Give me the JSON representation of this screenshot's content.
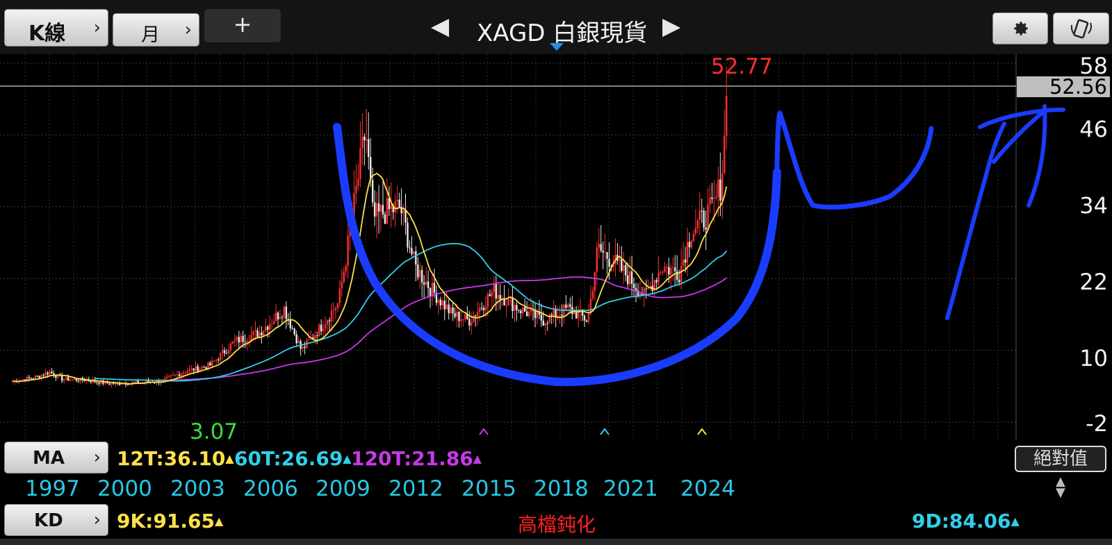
{
  "toolbar": {
    "chart_type_label": "K線",
    "period_label": "月",
    "add_label": "+",
    "title": "XAGD 白銀現貨",
    "prev_symbol": "◀",
    "next_symbol": "▶",
    "settings_icon": "gear-icon",
    "rotate_icon": "rotate-screen-icon"
  },
  "colors": {
    "ma12": "#ffe14a",
    "ma60": "#2fd0e8",
    "ma120": "#c838e8",
    "up_candle": "#ff3030",
    "down_candle": "#e8e8e8",
    "annotation": "#1a3cff",
    "high": "#ff2e2e",
    "low": "#3bdc3b"
  },
  "chart": {
    "y_axis_labels": [
      "58",
      "46",
      "34",
      "22",
      "10",
      "-2"
    ],
    "current_price": "52.56",
    "high_label": "52.77",
    "low_label": "3.07"
  },
  "chart_data": {
    "type": "candlestick",
    "symbol": "XAGD 白銀現貨",
    "period": "月",
    "x_labels": [
      "1997",
      "2000",
      "2003",
      "2006",
      "2009",
      "2012",
      "2015",
      "2018",
      "2021",
      "2024"
    ],
    "ylim": [
      -2,
      58
    ],
    "y_ticks": [
      58,
      46,
      34,
      22,
      10,
      -2
    ],
    "high": 52.77,
    "low": 3.07,
    "last": 52.56,
    "close_path": [
      [
        1997.0,
        4.8
      ],
      [
        1998.0,
        5.6
      ],
      [
        1998.5,
        6.4
      ],
      [
        1999.0,
        5.2
      ],
      [
        2000.0,
        5.0
      ],
      [
        2001.0,
        4.4
      ],
      [
        2002.0,
        4.6
      ],
      [
        2003.0,
        4.8
      ],
      [
        2004.0,
        6.5
      ],
      [
        2005.0,
        7.5
      ],
      [
        2006.0,
        11.5
      ],
      [
        2007.0,
        13.0
      ],
      [
        2008.0,
        17.0
      ],
      [
        2008.7,
        10.0
      ],
      [
        2009.5,
        14.0
      ],
      [
        2010.2,
        18.0
      ],
      [
        2010.6,
        28.0
      ],
      [
        2011.3,
        47.0
      ],
      [
        2011.6,
        32.0
      ],
      [
        2012.0,
        33.0
      ],
      [
        2012.7,
        34.0
      ],
      [
        2013.3,
        24.0
      ],
      [
        2014.0,
        20.0
      ],
      [
        2014.8,
        16.0
      ],
      [
        2015.5,
        15.0
      ],
      [
        2016.5,
        20.0
      ],
      [
        2017.5,
        17.0
      ],
      [
        2018.5,
        15.0
      ],
      [
        2019.5,
        17.0
      ],
      [
        2020.3,
        15.0
      ],
      [
        2020.7,
        27.0
      ],
      [
        2021.3,
        25.0
      ],
      [
        2022.0,
        22.0
      ],
      [
        2022.6,
        19.0
      ],
      [
        2023.3,
        24.0
      ],
      [
        2024.0,
        23.0
      ],
      [
        2024.5,
        30.0
      ],
      [
        2025.0,
        32.0
      ],
      [
        2025.4,
        34.0
      ],
      [
        2025.7,
        38.0
      ],
      [
        2025.85,
        46.0
      ],
      [
        2025.95,
        52.56
      ]
    ],
    "indicators": {
      "MA": {
        "12T": 36.1,
        "60T": 26.69,
        "120T": 21.86
      },
      "KD": {
        "9K": 91.65,
        "9D": 84.06
      }
    }
  },
  "ma_row": {
    "button_label": "MA",
    "items": [
      {
        "text": "12T:36.10",
        "arrow": "▲"
      },
      {
        "text": "60T:26.69",
        "arrow": "▲"
      },
      {
        "text": "120T:21.86",
        "arrow": "▲"
      }
    ],
    "absolute_button": "絕對值"
  },
  "years": [
    "1997",
    "2000",
    "2003",
    "2006",
    "2009",
    "2012",
    "2015",
    "2018",
    "2021",
    "2024"
  ],
  "kd_row": {
    "button_label": "KD",
    "k_text": "9K:91.65",
    "status_text": "高檔鈍化",
    "d_text": "9D:84.06"
  }
}
